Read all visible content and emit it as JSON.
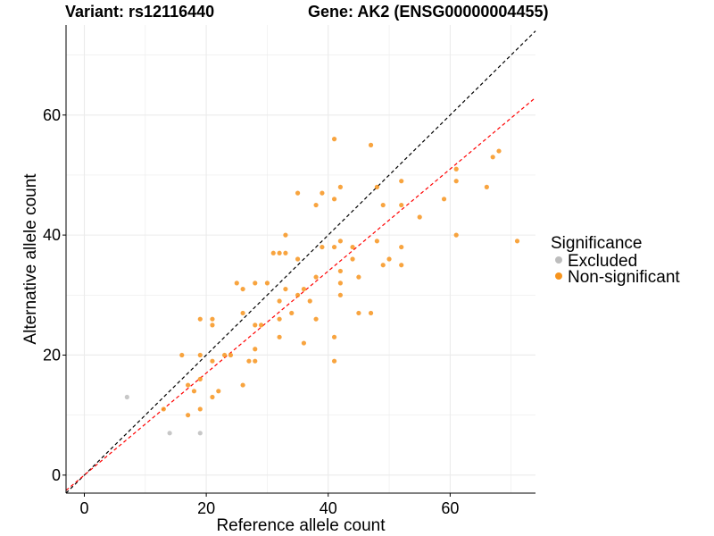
{
  "header": {
    "variant": "Variant: rs12116440",
    "gene": "Gene: AK2 (ENSG00000004455)"
  },
  "chart_data": {
    "type": "scatter",
    "xlabel": "Reference allele count",
    "ylabel": "Alternative allele count",
    "xlim": [
      -3,
      74
    ],
    "ylim": [
      -3,
      75
    ],
    "xticks": [
      0,
      20,
      40,
      60
    ],
    "yticks": [
      0,
      20,
      40,
      60
    ],
    "grid": true,
    "legend": {
      "title": "Significance",
      "position": "right",
      "entries": [
        {
          "label": "Excluded",
          "color": "#bdbdbd"
        },
        {
          "label": "Non-significant",
          "color": "#f7941d"
        }
      ]
    },
    "reference_lines": [
      {
        "slope": 1.0,
        "intercept": 0,
        "color": "#000000",
        "style": "dashed"
      },
      {
        "slope": 0.85,
        "intercept": 0,
        "color": "#ff0000",
        "style": "dashed"
      }
    ],
    "series": [
      {
        "name": "Excluded",
        "color": "#bdbdbd",
        "points": [
          [
            7,
            13
          ],
          [
            14,
            7
          ],
          [
            19,
            7
          ]
        ]
      },
      {
        "name": "Non-significant",
        "color": "#f7941d",
        "points": [
          [
            13,
            11
          ],
          [
            16,
            20
          ],
          [
            17,
            15
          ],
          [
            17,
            10
          ],
          [
            18,
            14
          ],
          [
            19,
            26
          ],
          [
            19,
            20
          ],
          [
            19,
            16
          ],
          [
            19,
            11
          ],
          [
            21,
            13
          ],
          [
            21,
            19
          ],
          [
            21,
            25
          ],
          [
            21,
            26
          ],
          [
            22,
            14
          ],
          [
            23,
            20
          ],
          [
            24,
            20
          ],
          [
            25,
            32
          ],
          [
            26,
            31
          ],
          [
            26,
            27
          ],
          [
            26,
            15
          ],
          [
            27,
            19
          ],
          [
            28,
            32
          ],
          [
            28,
            25
          ],
          [
            28,
            21
          ],
          [
            28,
            19
          ],
          [
            29,
            25
          ],
          [
            30,
            32
          ],
          [
            31,
            37
          ],
          [
            32,
            37
          ],
          [
            32,
            29
          ],
          [
            32,
            26
          ],
          [
            32,
            23
          ],
          [
            33,
            40
          ],
          [
            33,
            37
          ],
          [
            33,
            31
          ],
          [
            34,
            27
          ],
          [
            35,
            47
          ],
          [
            35,
            36
          ],
          [
            35,
            30
          ],
          [
            36,
            31
          ],
          [
            36,
            22
          ],
          [
            37,
            29
          ],
          [
            38,
            45
          ],
          [
            38,
            33
          ],
          [
            38,
            26
          ],
          [
            39,
            47
          ],
          [
            39,
            38
          ],
          [
            41,
            56
          ],
          [
            41,
            46
          ],
          [
            41,
            38
          ],
          [
            41,
            23
          ],
          [
            41,
            19
          ],
          [
            42,
            48
          ],
          [
            42,
            39
          ],
          [
            42,
            34
          ],
          [
            42,
            32
          ],
          [
            42,
            30
          ],
          [
            44,
            36
          ],
          [
            44,
            38
          ],
          [
            45,
            33
          ],
          [
            45,
            27
          ],
          [
            47,
            55
          ],
          [
            47,
            27
          ],
          [
            48,
            48
          ],
          [
            48,
            39
          ],
          [
            49,
            45
          ],
          [
            49,
            35
          ],
          [
            50,
            36
          ],
          [
            52,
            49
          ],
          [
            52,
            45
          ],
          [
            52,
            38
          ],
          [
            52,
            35
          ],
          [
            55,
            43
          ],
          [
            59,
            46
          ],
          [
            61,
            51
          ],
          [
            61,
            49
          ],
          [
            61,
            40
          ],
          [
            66,
            48
          ],
          [
            67,
            53
          ],
          [
            68,
            54
          ],
          [
            71,
            39
          ]
        ]
      }
    ]
  }
}
